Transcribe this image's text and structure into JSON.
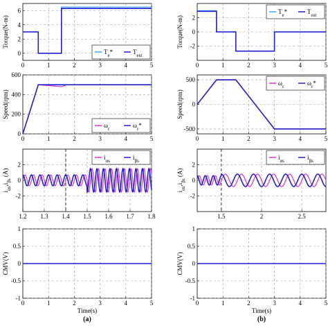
{
  "colors": {
    "blue": "#1f1fd0",
    "light_blue": "#40a8ff",
    "magenta": "#e030c8",
    "grid": "#9a9a9a"
  },
  "chart_data": [
    {
      "id": "a1",
      "type": "line",
      "ylabel": "Torque(N-m)",
      "xlim": [
        0,
        5
      ],
      "ylim": [
        -1,
        7
      ],
      "xticks": [
        "0",
        "1",
        "2",
        "3",
        "4",
        "5"
      ],
      "yticks": [
        "0",
        "2",
        "4",
        "6"
      ],
      "yticks_v": [
        0,
        2,
        4,
        6
      ],
      "legend": [
        "T_e*",
        "T_est"
      ],
      "legend_pos": "bottom-right",
      "grid": true,
      "series": [
        {
          "name": "T_e*",
          "color": "light_blue",
          "x": [
            0,
            0.6,
            0.6,
            1.5,
            1.5,
            5
          ],
          "y": [
            3,
            3,
            0,
            0,
            6.5,
            6.5
          ]
        },
        {
          "name": "T_est",
          "color": "blue",
          "x": [
            0,
            0.6,
            0.6,
            1.5,
            1.5,
            5
          ],
          "y": [
            3,
            3,
            0,
            0,
            6.3,
            6.3
          ]
        }
      ]
    },
    {
      "id": "b1",
      "type": "line",
      "ylabel": "Torque(N-m)",
      "xlim": [
        0,
        5
      ],
      "ylim": [
        -4,
        4
      ],
      "xticks": [
        "0",
        "1",
        "2",
        "3",
        "4",
        "5"
      ],
      "yticks": [
        "-2",
        "0",
        "2"
      ],
      "yticks_v": [
        -2,
        0,
        2
      ],
      "legend": [
        "T_e*",
        "T_est"
      ],
      "legend_pos": "top-right",
      "grid": true,
      "series": [
        {
          "name": "T_e*",
          "color": "light_blue",
          "x": [
            0,
            0.75,
            0.75,
            1.5,
            1.5,
            3,
            3,
            5
          ],
          "y": [
            3,
            3,
            0,
            0,
            -2.7,
            -2.7,
            0,
            0
          ]
        },
        {
          "name": "T_est",
          "color": "blue",
          "x": [
            0,
            0.75,
            0.75,
            1.5,
            1.5,
            3,
            3,
            5
          ],
          "y": [
            2.9,
            2.9,
            0,
            0,
            -2.7,
            -2.7,
            0,
            0
          ]
        }
      ]
    },
    {
      "id": "a2",
      "type": "line",
      "ylabel": "Speed(rpm)",
      "xlim": [
        0,
        5
      ],
      "ylim": [
        0,
        600
      ],
      "xticks": [
        "0",
        "1",
        "2",
        "3",
        "4",
        "5"
      ],
      "yticks": [
        "0",
        "200",
        "400",
        "600"
      ],
      "yticks_v": [
        0,
        200,
        400,
        600
      ],
      "legend": [
        "ω_r",
        "ω_r*"
      ],
      "legend_pos": "bottom-right",
      "grid": true,
      "series": [
        {
          "name": "ω_r",
          "color": "magenta",
          "x": [
            0,
            0.6,
            1.5,
            1.7,
            5
          ],
          "y": [
            0,
            500,
            480,
            500,
            500
          ]
        },
        {
          "name": "ω_r*",
          "color": "blue",
          "x": [
            0,
            0.6,
            5
          ],
          "y": [
            0,
            500,
            500
          ]
        }
      ]
    },
    {
      "id": "b2",
      "type": "line",
      "ylabel": "Speed(rpm)",
      "xlim": [
        0,
        5
      ],
      "ylim": [
        -600,
        600
      ],
      "xticks": [
        "0",
        "1",
        "2",
        "3",
        "4",
        "5"
      ],
      "yticks": [
        "-500",
        "0",
        "500"
      ],
      "yticks_v": [
        -500,
        0,
        500
      ],
      "legend": [
        "ω_r",
        "ω_r*"
      ],
      "legend_pos": "top-right",
      "grid": true,
      "series": [
        {
          "name": "ω_r",
          "color": "magenta",
          "x": [
            0,
            0.75,
            1.5,
            3,
            5
          ],
          "y": [
            0,
            500,
            500,
            -500,
            -500
          ]
        },
        {
          "name": "ω_r*",
          "color": "blue",
          "x": [
            0,
            0.75,
            1.5,
            3,
            5
          ],
          "y": [
            0,
            500,
            500,
            -500,
            -500
          ]
        }
      ]
    },
    {
      "id": "a3",
      "type": "line",
      "ylabel": "i_αs,i_βs (A)",
      "xlim": [
        1.2,
        1.8
      ],
      "ylim": [
        -4,
        4
      ],
      "xticks": [
        "1.2",
        "1.3",
        "1.4",
        "1.5",
        "1.6",
        "1.7",
        "1.8"
      ],
      "xticks_v": [
        1.2,
        1.3,
        1.4,
        1.5,
        1.6,
        1.7,
        1.8
      ],
      "yticks": [
        "-2",
        "0",
        "2"
      ],
      "yticks_v": [
        -2,
        0,
        2
      ],
      "legend": [
        "i_αs",
        "i_βs"
      ],
      "legend_pos": "top-right",
      "grid": true,
      "vline": 1.4,
      "series": [
        {
          "name": "i_αs",
          "color": "magenta",
          "wave": {
            "t0": 1.5,
            "amp1": 0.7,
            "amp2": 1.5,
            "freq1": 25,
            "freq2": 33,
            "phase": 0
          }
        },
        {
          "name": "i_βs",
          "color": "blue",
          "wave": {
            "t0": 1.5,
            "amp1": 0.7,
            "amp2": 1.5,
            "freq1": 25,
            "freq2": 33,
            "phase": 1.57
          }
        }
      ]
    },
    {
      "id": "b3",
      "type": "line",
      "ylabel": "i_αs,i_βs (A)",
      "xlim": [
        1.2,
        2.8
      ],
      "ylim": [
        -4,
        4
      ],
      "xticks": [
        "1.5",
        "2",
        "2.5"
      ],
      "xticks_v": [
        1.5,
        2,
        2.5
      ],
      "yticks": [
        "-2",
        "0",
        "2"
      ],
      "yticks_v": [
        -2,
        0,
        2
      ],
      "legend": [
        "i_αs",
        "i_βs"
      ],
      "legend_pos": "top-right",
      "grid": true,
      "vline": 1.5,
      "series": [
        {
          "name": "i_αs",
          "color": "magenta",
          "wave": {
            "t0": 1.5,
            "amp1": 0.6,
            "amp2": 0.8,
            "freq1": 10,
            "freq2": 5,
            "phase": 0
          }
        },
        {
          "name": "i_βs",
          "color": "blue",
          "wave": {
            "t0": 1.5,
            "amp1": 0.6,
            "amp2": 0.8,
            "freq1": 10,
            "freq2": 5,
            "phase": 1.57
          }
        }
      ]
    },
    {
      "id": "a4",
      "type": "line",
      "ylabel": "CMV(V)",
      "xlabel": "Time(s)",
      "caption": "(a)",
      "xlim": [
        0,
        5
      ],
      "ylim": [
        -1,
        1
      ],
      "xticks": [
        "0",
        "1",
        "2",
        "3",
        "4",
        "5"
      ],
      "yticks": [
        "-1",
        "-0.5",
        "0",
        "0.5",
        "1"
      ],
      "yticks_v": [
        -1,
        -0.5,
        0,
        0.5,
        1
      ],
      "grid": true,
      "series": [
        {
          "name": "CMV",
          "color": "blue",
          "x": [
            0,
            5
          ],
          "y": [
            0,
            0
          ]
        }
      ]
    },
    {
      "id": "b4",
      "type": "line",
      "ylabel": "CMV(V)",
      "xlabel": "Time(s)",
      "caption": "(b)",
      "xlim": [
        0,
        5
      ],
      "ylim": [
        -1,
        1
      ],
      "xticks": [
        "0",
        "1",
        "2",
        "3",
        "4",
        "5"
      ],
      "yticks": [
        "-1",
        "-0.5",
        "0",
        "0.5",
        "1"
      ],
      "yticks_v": [
        -1,
        -0.5,
        0,
        0.5,
        1
      ],
      "grid": true,
      "series": [
        {
          "name": "CMV",
          "color": "blue",
          "x": [
            0,
            5
          ],
          "y": [
            0,
            0
          ]
        }
      ]
    }
  ]
}
